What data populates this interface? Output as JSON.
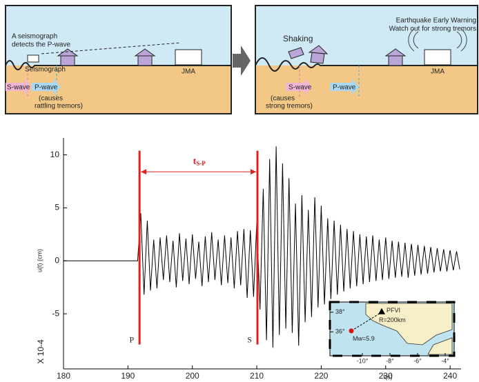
{
  "diagram": {
    "left_panel": {
      "callout": [
        "A seismograph",
        "detects the P-wave"
      ],
      "seismograph": "Seismograph",
      "jma": "JMA",
      "s_wave": "S-wave",
      "p_wave": "P-wave",
      "note": [
        "(causes",
        "rattling tremors)"
      ]
    },
    "right_panel": {
      "shaking": "Shaking",
      "warning": [
        "Earthquake Early Warning",
        "Watch out for strong tremors"
      ],
      "jma": "JMA",
      "s_wave": "S-wave",
      "p_wave": "P-wave",
      "note": [
        "(causes",
        "strong tremors)"
      ]
    }
  },
  "chart_data": {
    "type": "line",
    "color": "#000000",
    "x_label": "t(s)",
    "y_label": "u(t) (cm)",
    "y_scale_label": "X 10-4",
    "xlim": [
      180,
      241.7
    ],
    "ylim": [
      -10.2,
      11.6
    ],
    "xticks": [
      180,
      190,
      200,
      210,
      220,
      230,
      240
    ],
    "yticks": [
      -5,
      0,
      5,
      10
    ],
    "x": [
      180,
      191.5,
      192,
      192.5,
      193,
      193.5,
      194,
      194.5,
      195,
      195.5,
      196,
      196.5,
      197,
      197.5,
      198,
      198.5,
      199,
      199.5,
      200,
      200.5,
      201,
      201.5,
      202,
      202.5,
      203,
      203.5,
      204,
      204.5,
      205,
      205.5,
      206,
      206.5,
      207,
      207.5,
      208,
      208.5,
      209,
      209.5,
      210,
      210.5,
      211,
      211.5,
      212,
      212.5,
      213,
      213.5,
      214,
      214.5,
      215,
      215.5,
      216,
      216.5,
      217,
      217.5,
      218,
      218.5,
      219,
      219.5,
      220,
      220.5,
      221,
      221.5,
      222,
      222.5,
      223,
      223.5,
      224,
      224.5,
      225,
      225.5,
      226,
      226.5,
      227,
      227.5,
      228,
      228.5,
      229,
      229.5,
      230,
      230.5,
      231,
      231.5,
      232,
      232.5,
      233,
      233.5,
      234,
      234.5,
      235,
      235.5,
      236,
      236.5,
      237,
      237.5,
      238,
      238.5,
      239,
      239.5,
      240,
      240.5,
      241,
      241.5
    ],
    "values": [
      0,
      0,
      4.5,
      -3.2,
      3.8,
      -2.8,
      2.0,
      -2.6,
      2.2,
      -1.8,
      2.4,
      -2.0,
      1.9,
      -2.5,
      2.6,
      -1.9,
      2.1,
      -2.2,
      2.5,
      -1.7,
      1.8,
      -2.4,
      2.3,
      -2.0,
      2.7,
      -1.8,
      2.0,
      -2.3,
      2.4,
      -2.1,
      2.2,
      -2.6,
      2.8,
      -2.3,
      3.0,
      -3.5,
      2.9,
      -3.4,
      3.8,
      -4.6,
      6.8,
      -7.5,
      9.6,
      -8.2,
      10.8,
      -7.0,
      9.2,
      -6.4,
      7.8,
      -6.8,
      5.4,
      -8.0,
      6.2,
      -5.8,
      4.8,
      -5.3,
      6.0,
      -4.4,
      5.2,
      -4.1,
      4.0,
      -3.6,
      3.8,
      -3.2,
      3.4,
      -2.9,
      3.0,
      -2.6,
      2.8,
      -2.4,
      2.5,
      -2.2,
      2.3,
      -2.0,
      2.4,
      -1.9,
      2.0,
      -1.8,
      2.2,
      -1.7,
      1.9,
      -1.6,
      1.8,
      -1.5,
      1.7,
      -1.6,
      1.6,
      -1.4,
      1.5,
      -1.3,
      1.4,
      -1.2,
      1.3,
      -1.1,
      1.2,
      -1.0,
      1.1,
      -1.0,
      1.0,
      -0.9,
      0.9,
      -0.8
    ],
    "markers": [
      {
        "text": "P",
        "x": 191.8,
        "y_start": -7.9,
        "y_end": 10.4,
        "color": "#e02020"
      },
      {
        "text": "S",
        "x": 210.1,
        "y_start": -7.9,
        "y_end": 10.4,
        "color": "#e02020"
      }
    ],
    "interval": {
      "text": "t",
      "subscript": "S-P",
      "x_start": 191.8,
      "x_end": 210.1,
      "y": 8.4,
      "color": "#e02020"
    },
    "inset": {
      "xlim": [
        -11,
        -3.5
      ],
      "ylim": [
        33.7,
        38.9
      ],
      "xticks": [
        {
          "value": -10,
          "label": "-10°"
        },
        {
          "value": -8,
          "label": "-8°"
        },
        {
          "value": -6,
          "label": "-6°"
        },
        {
          "value": -4,
          "label": "-4°"
        }
      ],
      "yticks": [
        {
          "value": 38,
          "label": "38°"
        },
        {
          "value": 36,
          "label": "36°"
        }
      ],
      "station": {
        "label": "PFVI",
        "lon": -8.6,
        "lat": 38.0
      },
      "epicenter": {
        "label": "Mw=5.9",
        "lon": -10.8,
        "lat": 36.1,
        "color": "#e01010"
      },
      "distance_label": "R=200km"
    }
  }
}
